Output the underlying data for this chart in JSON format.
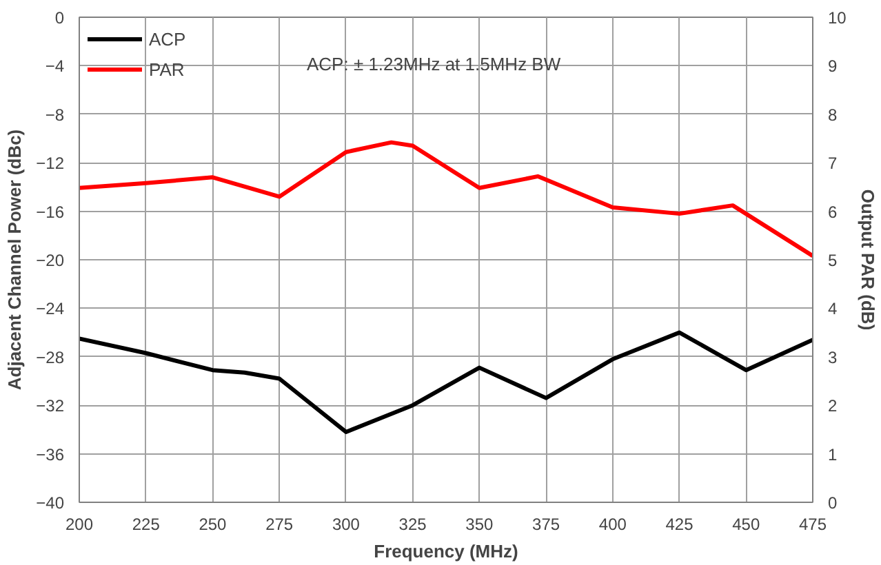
{
  "chart_data": {
    "type": "line",
    "xlabel": "Frequency (MHz)",
    "ylabel": "Adjacent Channel Power (dBc)",
    "y2label": "Output PAR (dB)",
    "annotations": [
      "ACP: ± 1.23MHz at 1.5MHz BW"
    ],
    "series": [
      {
        "name": "ACP",
        "color": "#000000",
        "x": [
          200,
          225,
          250,
          262,
          275,
          300,
          325,
          350,
          375,
          400,
          425,
          450,
          475
        ],
        "values": [
          -26.5,
          -27.7,
          -29.1,
          -29.3,
          -29.8,
          -34.2,
          -32,
          -28.9,
          -31.4,
          -28.2,
          -26,
          -29.1,
          -26.6
        ]
      },
      {
        "name": "PAR",
        "color": "#ff0000",
        "axis": "y2",
        "x": [
          200,
          225,
          250,
          275,
          300,
          317,
          325,
          350,
          372,
          400,
          425,
          445,
          475
        ],
        "values": [
          6.48,
          6.58,
          6.7,
          6.3,
          7.22,
          7.42,
          7.35,
          6.48,
          6.72,
          6.08,
          5.95,
          6.12,
          5.08
        ]
      }
    ],
    "xlim": [
      200,
      475
    ],
    "xticks": [
      200,
      225,
      250,
      275,
      300,
      325,
      350,
      375,
      400,
      425,
      450,
      475
    ],
    "ylim": [
      -40,
      0
    ],
    "yticks": [
      -40,
      -36,
      -32,
      -28,
      -24,
      -20,
      -16,
      -12,
      -8,
      -4,
      0
    ],
    "y2lim": [
      0,
      10
    ],
    "y2ticks": [
      0,
      1,
      2,
      3,
      4,
      5,
      6,
      7,
      8,
      9,
      10
    ],
    "grid": true,
    "legend": "top left",
    "marker": "none",
    "line_style": "solid"
  }
}
